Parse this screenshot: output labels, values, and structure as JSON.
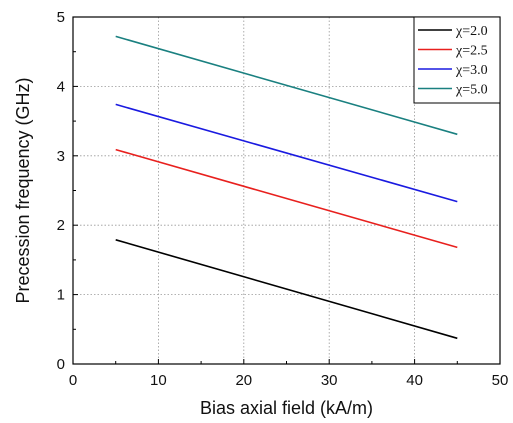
{
  "chart_data": {
    "type": "line",
    "title": "",
    "xlabel": "Bias axial field (kA/m)",
    "ylabel": "Precession frequency (GHz)",
    "xlim": [
      0,
      50
    ],
    "ylim": [
      0,
      5
    ],
    "xticks": [
      "0",
      "10",
      "20",
      "30",
      "40",
      "50"
    ],
    "yticks": [
      "0",
      "1",
      "2",
      "3",
      "4",
      "5"
    ],
    "grid": true,
    "legend_position": "top-right",
    "series": [
      {
        "name": "χ=2.0",
        "color": "#000000",
        "x": [
          5,
          45
        ],
        "values": [
          1.79,
          0.37
        ]
      },
      {
        "name": "χ=2.5",
        "color": "#e8201e",
        "x": [
          5,
          45
        ],
        "values": [
          3.09,
          1.68
        ]
      },
      {
        "name": "χ=3.0",
        "color": "#1a1ae0",
        "x": [
          5,
          45
        ],
        "values": [
          3.74,
          2.34
        ]
      },
      {
        "name": "χ=5.0",
        "color": "#1a8080",
        "x": [
          5,
          45
        ],
        "values": [
          4.72,
          3.31
        ]
      }
    ]
  }
}
